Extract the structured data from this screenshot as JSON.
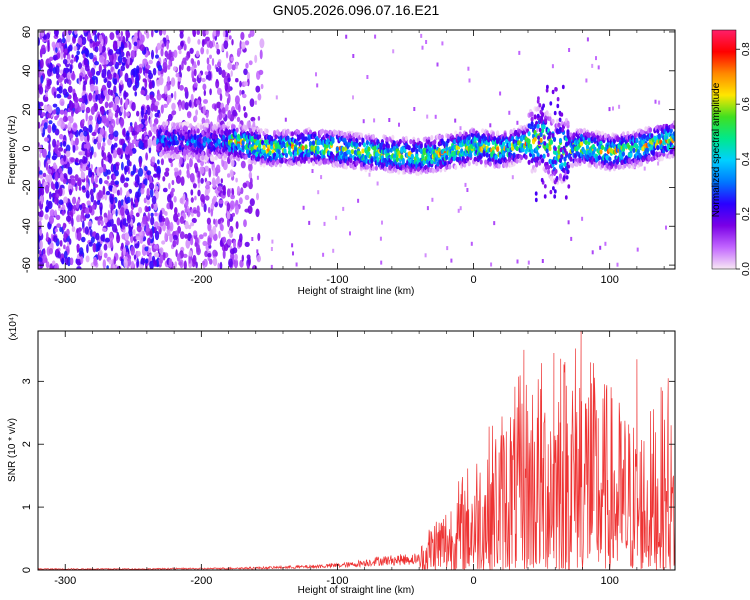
{
  "title": "GN05.2026.096.07.16.E21",
  "chart_data": [
    {
      "type": "heatmap",
      "title": "",
      "xlabel": "Height of straight line (km)",
      "ylabel": "Frequency (Hz)",
      "xlim": [
        -320,
        148
      ],
      "ylim": [
        -62,
        61
      ],
      "xticks": [
        -300,
        -200,
        -100,
        0,
        100
      ],
      "yticks": [
        -60,
        -40,
        -20,
        0,
        20,
        40,
        60
      ],
      "grid": false,
      "colorbar": {
        "label": "Normalized spectral amplitude",
        "range": [
          0.0,
          0.87
        ],
        "ticks": [
          "0.0",
          "0.2",
          "0.4",
          "0.6",
          "0.8"
        ],
        "colors": [
          "#f8e8f4",
          "#c266ff",
          "#7a00e6",
          "#2a00ff",
          "#0077ff",
          "#00d0ff",
          "#00e88c",
          "#40e020",
          "#ffe600",
          "#ff8800",
          "#ff0000",
          "#ff1f6a"
        ]
      },
      "ridge": {
        "x": [
          -230,
          -200,
          -180,
          -150,
          -120,
          -100,
          -80,
          -60,
          -40,
          -20,
          0,
          20,
          40,
          50,
          60,
          80,
          100,
          120,
          140,
          148
        ],
        "y": [
          5,
          3,
          4,
          0,
          1,
          0,
          -2,
          -3,
          -4,
          -2,
          1,
          -1,
          3,
          6,
          -2,
          1,
          -2,
          0,
          4,
          5
        ]
      },
      "noise_region_x": [
        -320,
        -165
      ]
    },
    {
      "type": "line",
      "title": "",
      "xlabel": "Height of straight line (km)",
      "ylabel": "SNR (10 * v/v)",
      "y_multiplier": "(x10⁴)",
      "xlim": [
        -320,
        148
      ],
      "ylim": [
        0,
        3.8
      ],
      "xticks": [
        -300,
        -200,
        -100,
        0,
        100
      ],
      "yticks": [
        0,
        1,
        2,
        3
      ],
      "grid": false,
      "series": [
        {
          "color": "#ee3333",
          "x": [
            -320,
            -300,
            -280,
            -260,
            -240,
            -220,
            -200,
            -180,
            -160,
            -140,
            -120,
            -100,
            -90,
            -80,
            -70,
            -60,
            -50,
            -40,
            -30,
            -20,
            -10,
            0,
            10,
            20,
            30,
            40,
            50,
            60,
            70,
            80,
            90,
            100,
            110,
            120,
            130,
            140,
            148
          ],
          "envelope": [
            0.03,
            0.03,
            0.03,
            0.03,
            0.03,
            0.04,
            0.04,
            0.05,
            0.06,
            0.08,
            0.1,
            0.14,
            0.16,
            0.22,
            0.28,
            0.3,
            0.32,
            0.35,
            0.9,
            1.1,
            1.5,
            1.9,
            2.3,
            2.6,
            3.0,
            3.3,
            3.4,
            3.5,
            3.7,
            3.9,
            3.2,
            3.0,
            2.7,
            2.4,
            2.6,
            3.0,
            2.2
          ],
          "peak_points": [
            [
              37,
              3.5
            ],
            [
              59,
              3.45
            ],
            [
              64,
              3.36
            ],
            [
              79,
              3.85
            ],
            [
              86,
              3.3
            ],
            [
              120,
              3.35
            ],
            [
              143,
              3.05
            ]
          ]
        }
      ]
    }
  ]
}
